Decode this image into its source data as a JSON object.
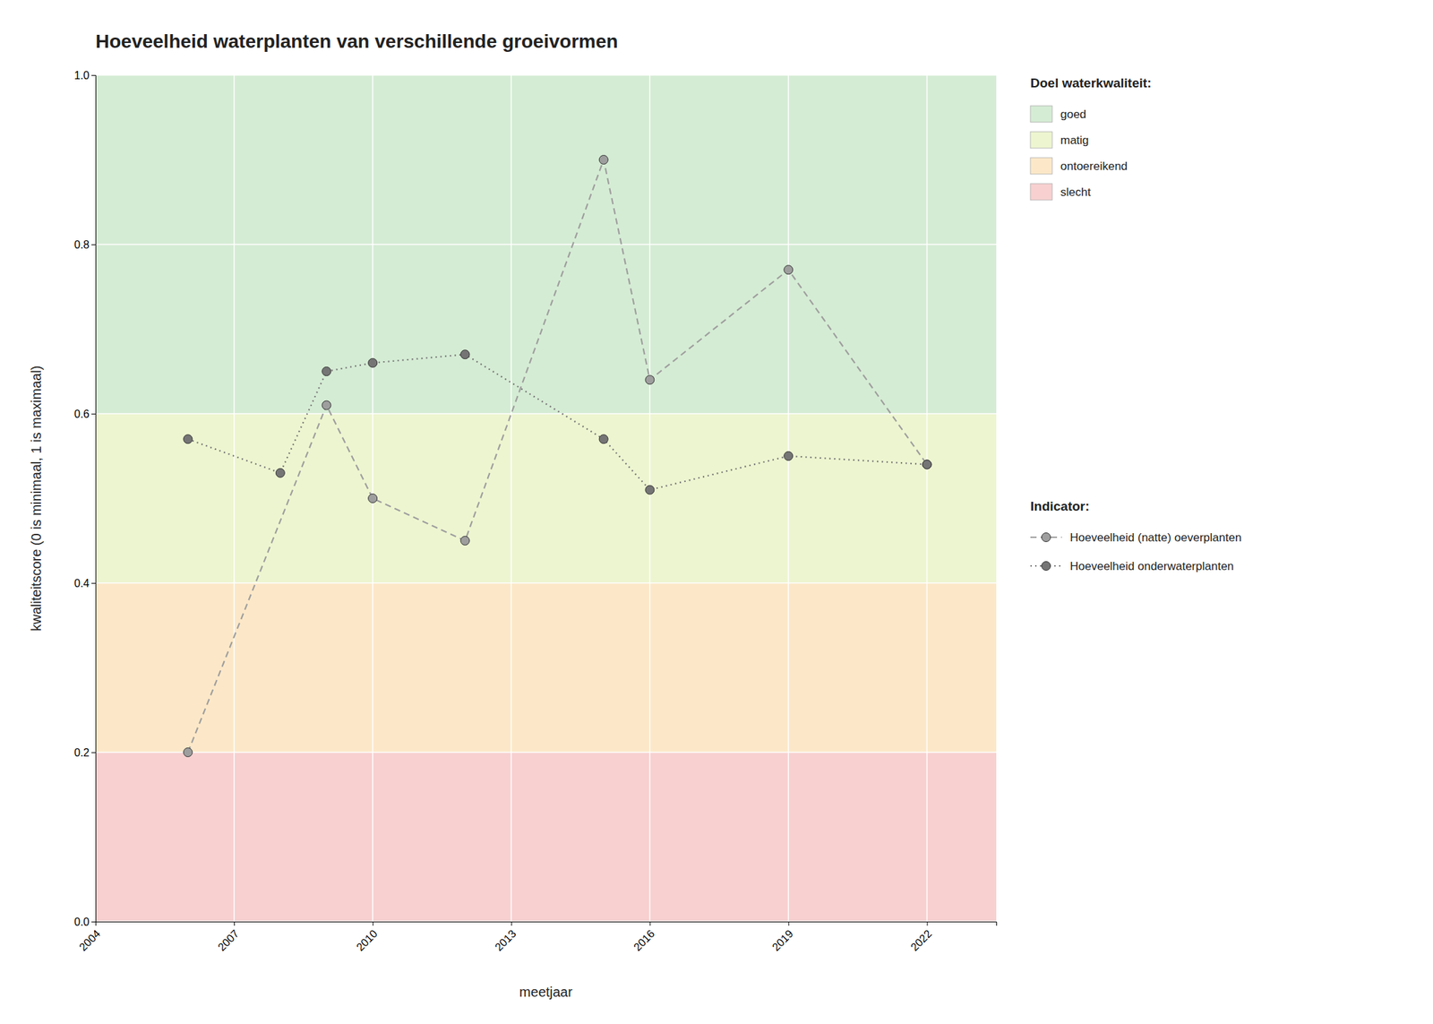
{
  "chart_data": {
    "type": "line",
    "title": "Hoeveelheid waterplanten van verschillende groeivormen",
    "x_label": "meetjaar",
    "y_label": "kwaliteitscore (0 is minimaal, 1 is maximaal)",
    "xlim": [
      2004,
      2023.5
    ],
    "ylim": [
      0.0,
      1.0
    ],
    "xticks": [
      2004,
      2007,
      2010,
      2013,
      2016,
      2019,
      2022
    ],
    "yticks": [
      {
        "value": 0.0,
        "label": "0.0"
      },
      0.2,
      0.4,
      0.6,
      0.8,
      {
        "value": 1.0,
        "label": "1.0"
      }
    ],
    "grid": true,
    "legend": "right",
    "bands_title": "Doel waterkwaliteit:",
    "bands": [
      {
        "name": "goed",
        "color": "#d5ecd4",
        "ymin": 0.6,
        "ymax": 1.0
      },
      {
        "name": "matig",
        "color": "#edf5d0",
        "ymin": 0.4,
        "ymax": 0.6
      },
      {
        "name": "ontoereikend",
        "color": "#fce8c8",
        "ymin": 0.2,
        "ymax": 0.4
      },
      {
        "name": "slecht",
        "color": "#f8d0d0",
        "ymin": 0.0,
        "ymax": 0.2
      }
    ],
    "legend_title": "Indicator:",
    "series": [
      {
        "name": "Hoeveelheid (natte) oeverplanten",
        "color": "#9e9e9e",
        "line_style": "dashed",
        "marker": "circle",
        "x": [
          2006,
          2009,
          2010,
          2012,
          2015,
          2016,
          2019,
          2022
        ],
        "values": [
          0.2,
          0.61,
          0.5,
          0.45,
          0.9,
          0.64,
          0.77,
          0.54
        ]
      },
      {
        "name": "Hoeveelheid onderwaterplanten",
        "color": "#757575",
        "line_style": "dotted",
        "marker": "circle",
        "x": [
          2006,
          2008,
          2009,
          2010,
          2012,
          2015,
          2016,
          2019,
          2022
        ],
        "values": [
          0.57,
          0.53,
          0.65,
          0.66,
          0.67,
          0.57,
          0.51,
          0.55,
          0.54
        ]
      }
    ]
  }
}
